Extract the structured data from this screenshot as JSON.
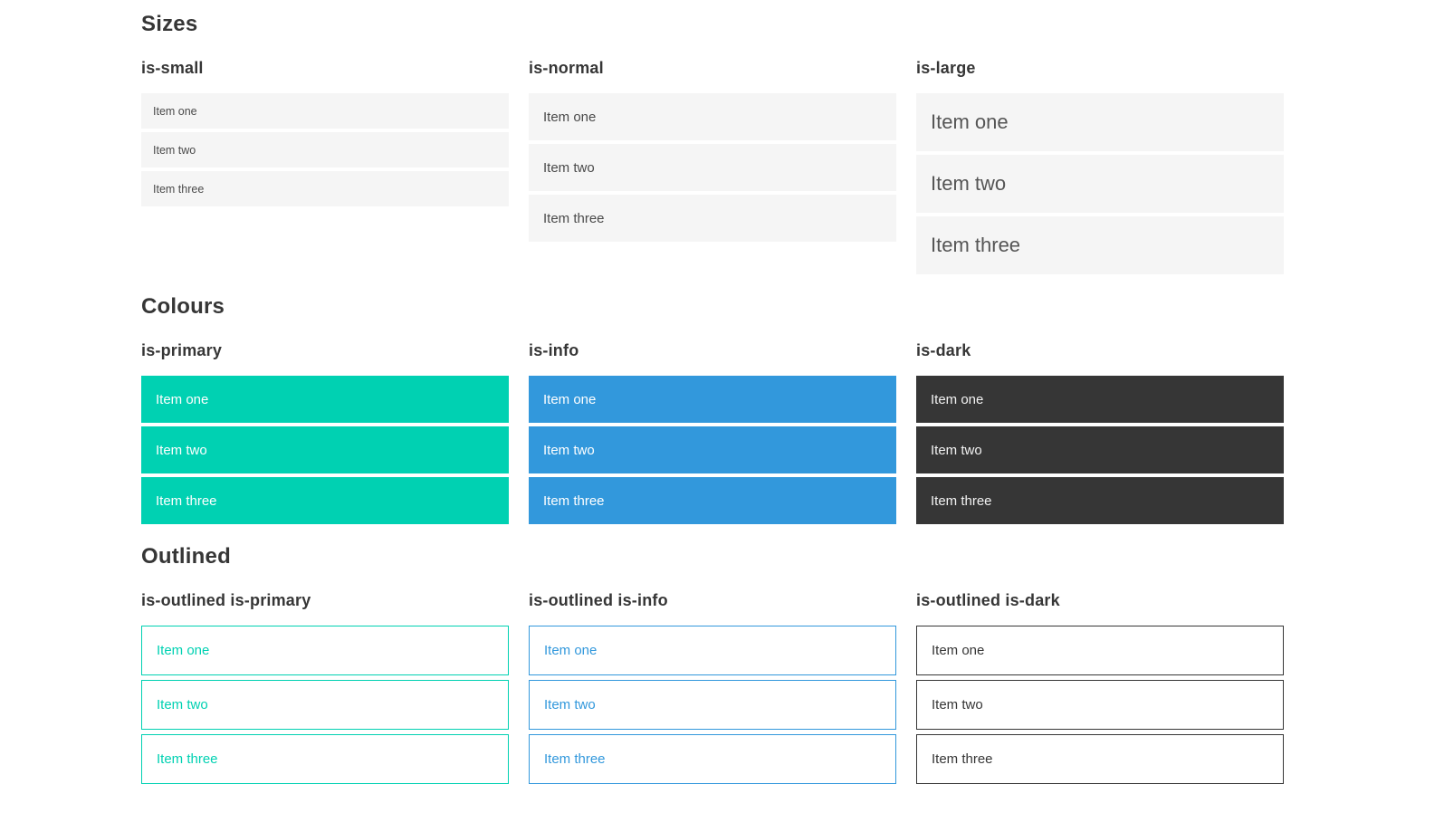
{
  "colors": {
    "primary": "#00d1b2",
    "info": "#3298dc",
    "dark": "#363636",
    "item_bg": "#f5f5f5",
    "heading": "#363636",
    "item_text": "#4a4a4a"
  },
  "sections": [
    {
      "title": "Sizes",
      "groups": [
        {
          "label": "is-small",
          "items": [
            "Item one",
            "Item two",
            "Item three"
          ]
        },
        {
          "label": "is-normal",
          "items": [
            "Item one",
            "Item two",
            "Item three"
          ]
        },
        {
          "label": "is-large",
          "items": [
            "Item one",
            "Item two",
            "Item three"
          ]
        }
      ]
    },
    {
      "title": "Colours",
      "groups": [
        {
          "label": "is-primary",
          "items": [
            "Item one",
            "Item two",
            "Item three"
          ]
        },
        {
          "label": "is-info",
          "items": [
            "Item one",
            "Item two",
            "Item three"
          ]
        },
        {
          "label": "is-dark",
          "items": [
            "Item one",
            "Item two",
            "Item three"
          ]
        }
      ]
    },
    {
      "title": "Outlined",
      "groups": [
        {
          "label": "is-outlined is-primary",
          "items": [
            "Item one",
            "Item two",
            "Item three"
          ]
        },
        {
          "label": "is-outlined is-info",
          "items": [
            "Item one",
            "Item two",
            "Item three"
          ]
        },
        {
          "label": "is-outlined is-dark",
          "items": [
            "Item one",
            "Item two",
            "Item three"
          ]
        }
      ]
    }
  ]
}
